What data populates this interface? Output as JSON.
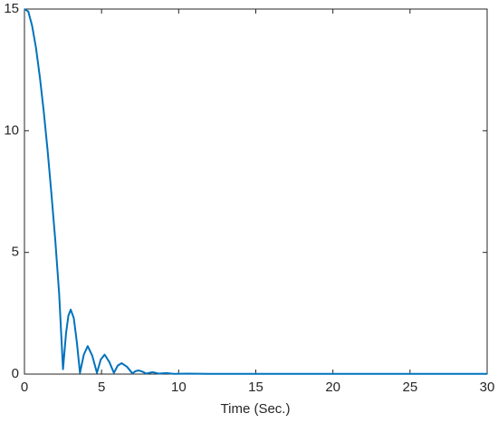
{
  "chart_data": {
    "type": "line",
    "xlabel": "Time (Sec.)",
    "x": [
      0,
      0.25,
      0.5,
      0.75,
      1,
      1.25,
      1.5,
      1.75,
      2,
      2.25,
      2.5,
      2.7,
      2.85,
      3.0,
      3.2,
      3.4,
      3.6,
      3.85,
      4.1,
      4.4,
      4.7,
      4.95,
      5.2,
      5.5,
      5.8,
      6.05,
      6.3,
      6.65,
      7.0,
      7.2,
      7.4,
      7.65,
      7.9,
      8.3,
      8.7,
      9.2,
      9.7,
      10.5,
      12,
      15,
      20,
      25,
      30
    ],
    "series": [
      {
        "color": "#0072bd",
        "values": [
          15,
          14.9,
          14.3,
          13.4,
          12.2,
          10.8,
          9.2,
          7.4,
          5.5,
          3.3,
          0.2,
          1.7,
          2.4,
          2.65,
          2.3,
          1.3,
          0.05,
          0.8,
          1.15,
          0.75,
          0.05,
          0.6,
          0.8,
          0.5,
          0.05,
          0.35,
          0.45,
          0.3,
          0.03,
          0.12,
          0.15,
          0.1,
          0.02,
          0.08,
          0.02,
          0.04,
          0.01,
          0.02,
          0.01,
          0.01,
          0.01,
          0.01,
          0.01
        ]
      }
    ],
    "xlim": [
      0,
      30
    ],
    "ylim": [
      0,
      15
    ],
    "xticks": [
      0,
      5,
      10,
      15,
      20,
      25,
      30
    ],
    "yticks": [
      0,
      5,
      10,
      15
    ]
  }
}
